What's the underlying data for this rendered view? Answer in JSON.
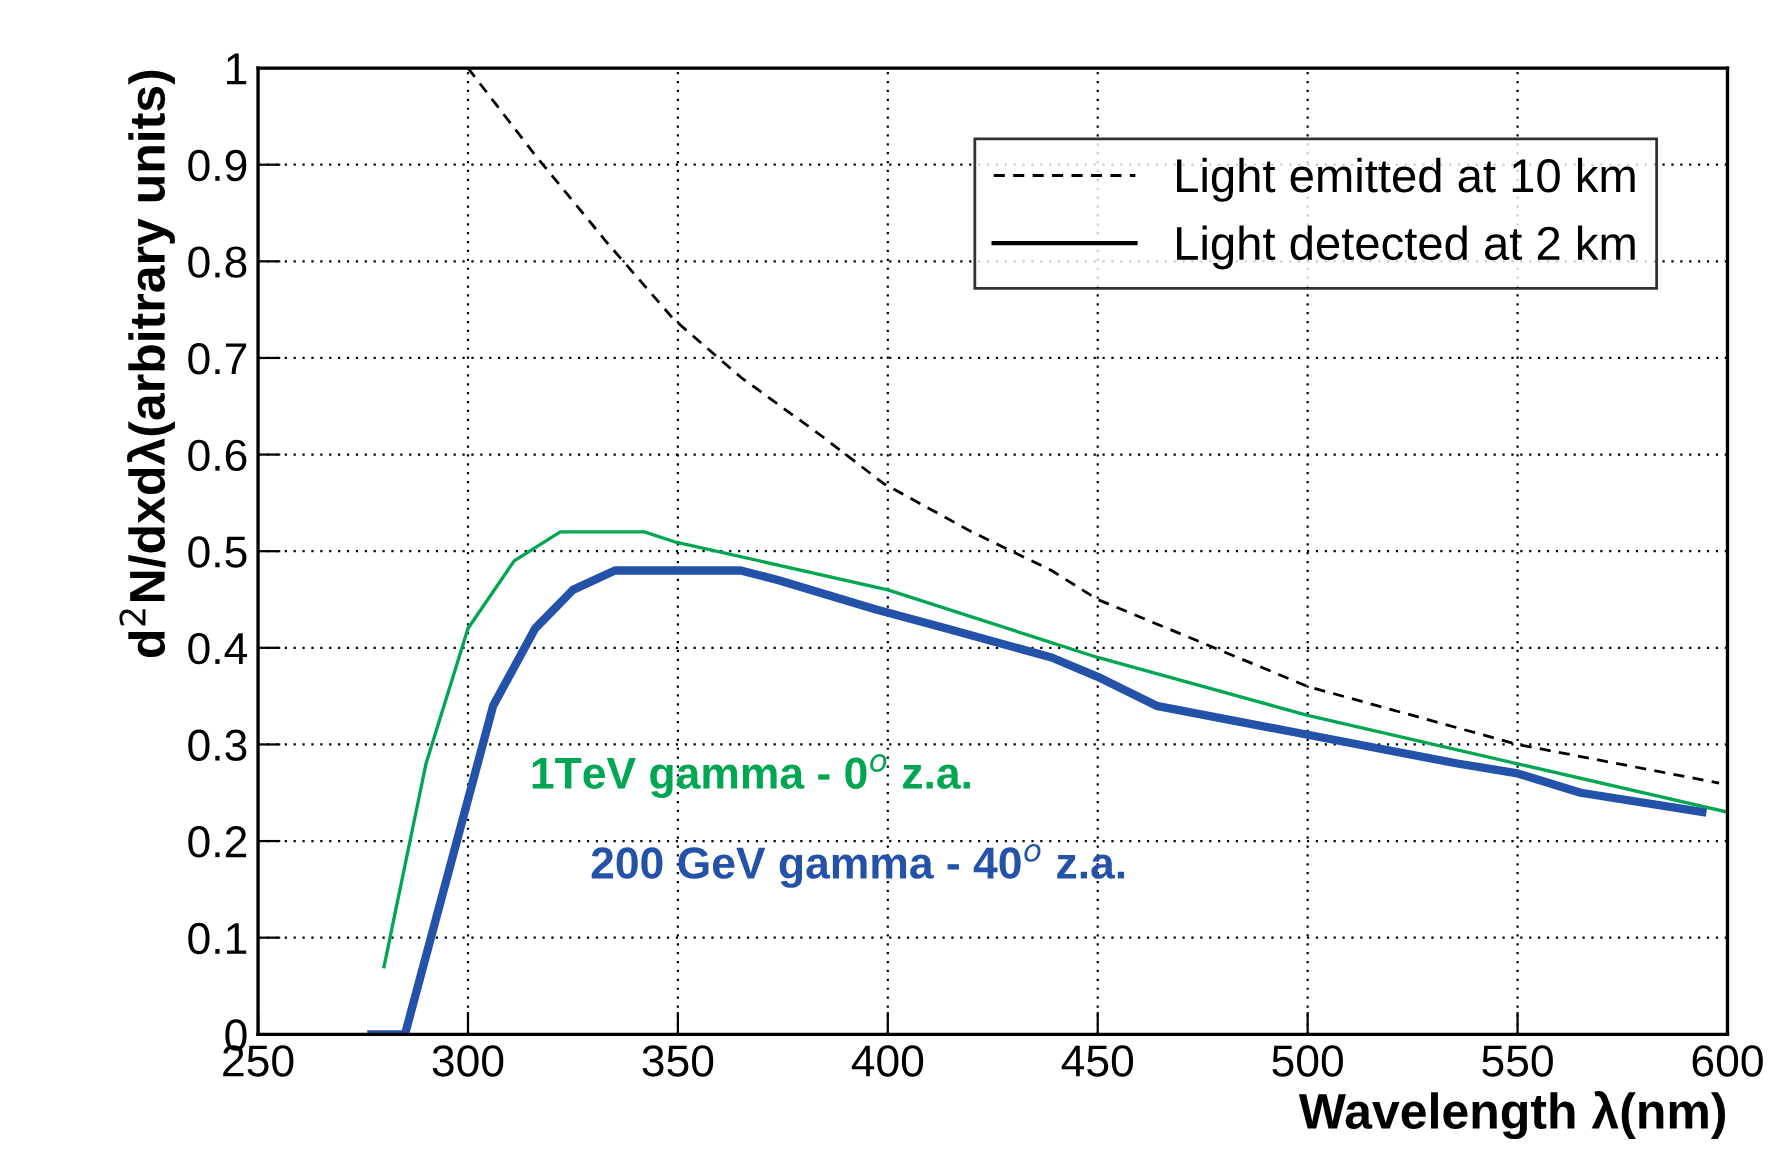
{
  "chart_data": {
    "type": "line",
    "xlabel": "Wavelength λ(nm)",
    "ylabel": "d$^{2}$N/dxdλ(arbitrary units)",
    "xlim": [
      250,
      600
    ],
    "xticks": [
      250,
      300,
      350,
      400,
      450,
      500,
      550,
      600
    ],
    "ylim": [
      0,
      1
    ],
    "yticks": [
      0,
      0.1,
      0.2,
      0.3,
      0.4,
      0.5,
      0.6,
      0.7,
      0.8,
      0.9,
      1
    ],
    "grid": true,
    "legend": "top right",
    "series": [
      {
        "name": "Light emitted at 10 km",
        "color": "#000000",
        "line_style": "dashed",
        "x": [
          300,
          316,
          333,
          349,
          365,
          384,
          399,
          420,
          439,
          450,
          500,
          550,
          598
        ],
        "values": [
          1.0,
          0.91,
          0.82,
          0.74,
          0.68,
          0.62,
          0.57,
          0.52,
          0.48,
          0.45,
          0.36,
          0.3,
          0.26
        ]
      },
      {
        "name": "Light detected at 2 km",
        "color": "#000000",
        "line_style": "solid"
      },
      {
        "name": "1TeV gamma - 0$^{o}$ z.a.",
        "color": "#00a651",
        "line_style": "solid",
        "x": [
          280,
          290,
          300,
          311,
          322,
          328,
          342,
          349,
          400,
          450,
          500,
          550,
          600
        ],
        "values": [
          0.07,
          0.28,
          0.42,
          0.49,
          0.52,
          0.52,
          0.52,
          0.51,
          0.46,
          0.39,
          0.33,
          0.28,
          0.23
        ]
      },
      {
        "name": "200 GeV gamma - 40$^{o}$ z.a.",
        "color": "#2352a8",
        "line_style": "solid",
        "x": [
          277,
          285,
          306,
          316,
          325,
          335,
          346,
          355,
          365,
          374,
          397,
          414,
          439,
          450,
          464,
          500,
          536,
          550,
          565,
          594
        ],
        "values": [
          0,
          0,
          0.34,
          0.42,
          0.46,
          0.48,
          0.48,
          0.48,
          0.48,
          0.47,
          0.44,
          0.42,
          0.39,
          0.37,
          0.34,
          0.31,
          0.28,
          0.27,
          0.25,
          0.23
        ]
      }
    ]
  }
}
